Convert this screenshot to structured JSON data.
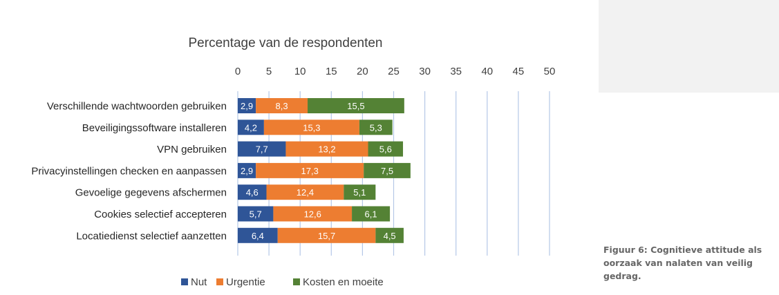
{
  "caption": "Figuur 6: Cognitieve attitude als oorzaak van nalaten van veilig gedrag.",
  "chart_data": {
    "type": "bar",
    "orientation": "horizontal",
    "stacked": true,
    "title": "Percentage van de respondenten",
    "xlabel": "",
    "ylabel": "",
    "xlim": [
      0,
      50
    ],
    "x_ticks": [
      0,
      5,
      10,
      15,
      20,
      25,
      30,
      35,
      40,
      45,
      50
    ],
    "x_axis_position": "top",
    "grid": true,
    "legend_position": "bottom",
    "categories": [
      "Verschillende wachtwoorden gebruiken",
      "Beveiligingssoftware installeren",
      "VPN gebruiken",
      "Privacyinstellingen checken en aanpassen",
      "Gevoelige gegevens afschermen",
      "Cookies selectief accepteren",
      "Locatiedienst selectief aanzetten"
    ],
    "series": [
      {
        "name": "Nut",
        "color": "#2f5597",
        "values": [
          2.9,
          4.2,
          7.7,
          2.9,
          4.6,
          5.7,
          6.4
        ],
        "labels": [
          "2,9",
          "4,2",
          "7,7",
          "2,9",
          "4,6",
          "5,7",
          "6,4"
        ]
      },
      {
        "name": "Urgentie",
        "color": "#ed7d31",
        "values": [
          8.3,
          15.3,
          13.2,
          17.3,
          12.4,
          12.6,
          15.7
        ],
        "labels": [
          "8,3",
          "15,3",
          "13,2",
          "17,3",
          "12,4",
          "12,6",
          "15,7"
        ]
      },
      {
        "name": "Kosten en moeite",
        "color": "#548235",
        "values": [
          15.5,
          5.3,
          5.6,
          7.5,
          5.1,
          6.1,
          4.5
        ],
        "labels": [
          "15,5",
          "5,3",
          "5,6",
          "7,5",
          "5,1",
          "6,1",
          "4,5"
        ]
      }
    ]
  }
}
